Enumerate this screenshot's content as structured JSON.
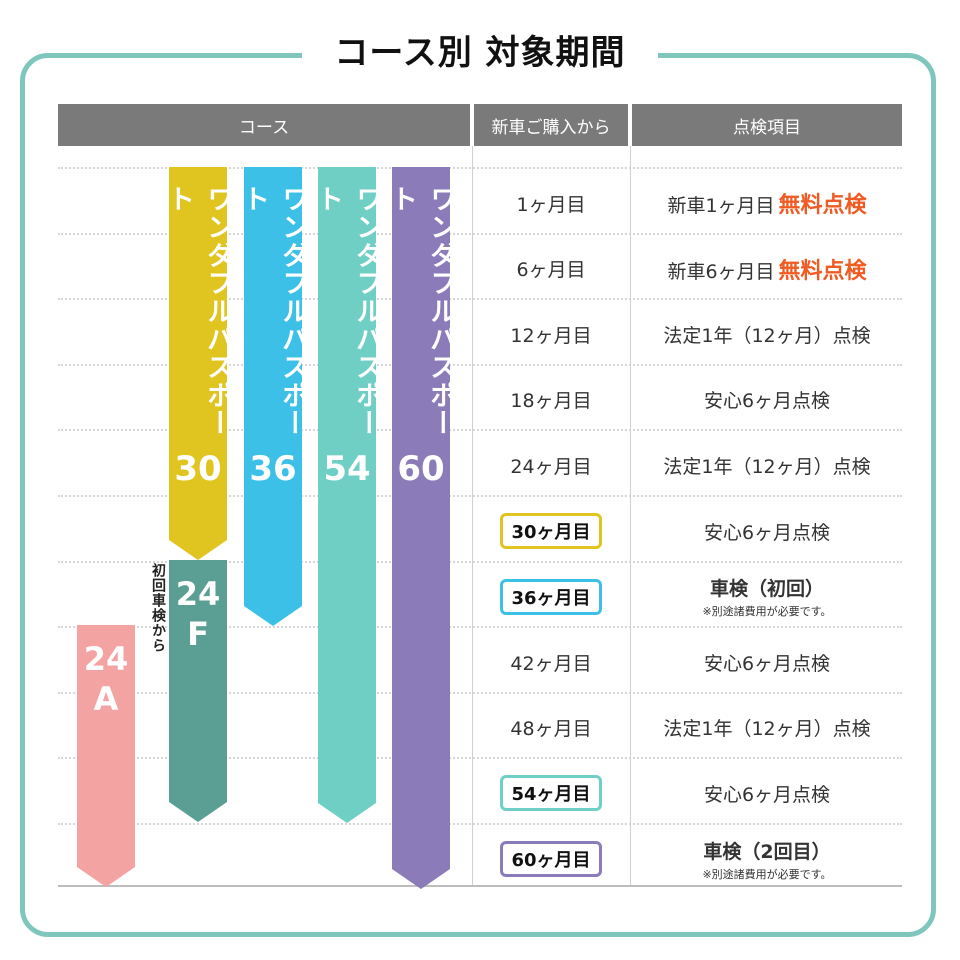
{
  "title": "コース別 対象期間",
  "headers": {
    "course": "コース",
    "from": "新車ご購入から",
    "item": "点検項目"
  },
  "courses": [
    {
      "id": "30",
      "text": "ワンダフルパスポート",
      "num": "30",
      "color": "#e0c420"
    },
    {
      "id": "36",
      "text": "ワンダフルパスポート",
      "num": "36",
      "color": "#3cc0e8"
    },
    {
      "id": "54",
      "text": "ワンダフルパスポート",
      "num": "54",
      "color": "#6fcfc4"
    },
    {
      "id": "60",
      "text": "ワンダフルパスポート",
      "num": "60",
      "color": "#8b7bb8"
    },
    {
      "id": "24F",
      "line1": "24",
      "line2": "F",
      "color": "#5a9e94"
    },
    {
      "id": "24A",
      "line1": "24",
      "line2": "A",
      "color": "#f4a3a3"
    }
  ],
  "side_note": "初回車検から",
  "rows": [
    {
      "month": "1ヶ月目",
      "item": "新車1ヶ月目",
      "free": "無料点検"
    },
    {
      "month": "6ヶ月目",
      "item": "新車6ヶ月目",
      "free": "無料点検"
    },
    {
      "month": "12ヶ月目",
      "item": "法定1年（12ヶ月）点検"
    },
    {
      "month": "18ヶ月目",
      "item": "安心6ヶ月点検"
    },
    {
      "month": "24ヶ月目",
      "item": "法定1年（12ヶ月）点検"
    },
    {
      "month": "30ヶ月目",
      "item": "安心6ヶ月点検",
      "box_color": "#e0c420"
    },
    {
      "month": "36ヶ月目",
      "item": "車検（初回）",
      "note": "※別途諸費用が必要です。",
      "box_color": "#3cc0e8"
    },
    {
      "month": "42ヶ月目",
      "item": "安心6ヶ月点検"
    },
    {
      "month": "48ヶ月目",
      "item": "法定1年（12ヶ月）点検"
    },
    {
      "month": "54ヶ月目",
      "item": "安心6ヶ月点検",
      "box_color": "#6fcfc4"
    },
    {
      "month": "60ヶ月目",
      "item": "車検（2回目）",
      "note": "※別途諸費用が必要です。",
      "box_color": "#8b7bb8"
    }
  ]
}
